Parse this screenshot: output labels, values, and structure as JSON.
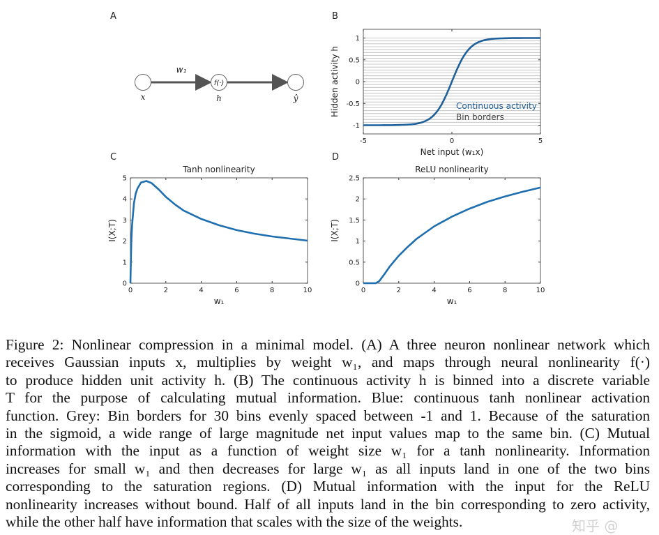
{
  "panels": {
    "a": "A",
    "b": "B",
    "c": "C",
    "d": "D"
  },
  "diagram_a": {
    "weight_label": "w₁",
    "nodes": [
      {
        "label": "x",
        "inner": ""
      },
      {
        "label": "h",
        "inner": "f(·)"
      },
      {
        "label": "ŷ",
        "inner": ""
      }
    ],
    "colors": {
      "arrow": "#555555",
      "node": "#666666"
    }
  },
  "chart_data": [
    {
      "type": "line",
      "panel": "B",
      "title": "",
      "xlabel": "Net input (w₁x)",
      "ylabel": "Hidden activity h",
      "xlim": [
        -5,
        5
      ],
      "ylim": [
        -1.2,
        1.2
      ],
      "xticks": [
        "-5",
        "0",
        "5"
      ],
      "yticks": [
        "-1",
        "-0.5",
        "0",
        "0.5",
        "1"
      ],
      "grid": "horizontal bin borders",
      "bin_borders": {
        "count_bins": 30,
        "from": -1,
        "to": 1,
        "color": "#bbbbbb"
      },
      "legend": {
        "placement": "bottom-right",
        "entries": [
          "Continuous activity",
          "Bin borders"
        ],
        "colors": [
          "#1f5f9a",
          "#444444"
        ]
      },
      "series": [
        {
          "name": "Continuous activity",
          "color": "#1f5f9a",
          "x": [
            -5,
            -4.5,
            -4,
            -3.5,
            -3,
            -2.5,
            -2,
            -1.5,
            -1,
            -0.5,
            0,
            0.5,
            1,
            1.5,
            2,
            2.5,
            3,
            3.5,
            4,
            4.5,
            5
          ],
          "y": [
            -1,
            -1,
            -0.999,
            -0.998,
            -0.995,
            -0.987,
            -0.964,
            -0.905,
            -0.762,
            -0.462,
            0,
            0.462,
            0.762,
            0.905,
            0.964,
            0.987,
            0.995,
            0.998,
            0.999,
            1,
            1
          ]
        }
      ]
    },
    {
      "type": "line",
      "panel": "C",
      "title": "Tanh nonlinearity",
      "xlabel": "w₁",
      "ylabel": "I(X;T)",
      "xlim": [
        0,
        10
      ],
      "ylim": [
        0,
        5
      ],
      "xticks": [
        "0",
        "2",
        "4",
        "6",
        "8",
        "10"
      ],
      "yticks": [
        "0",
        "1",
        "2",
        "3",
        "4",
        "5"
      ],
      "grid": false,
      "series": [
        {
          "color": "#1f6fb0",
          "x": [
            0,
            0.05,
            0.1,
            0.2,
            0.3,
            0.4,
            0.6,
            0.9,
            1.2,
            1.6,
            2,
            2.5,
            3,
            4,
            5,
            6,
            7,
            8,
            9,
            10
          ],
          "y": [
            0,
            2.0,
            2.8,
            3.8,
            4.25,
            4.5,
            4.78,
            4.85,
            4.75,
            4.45,
            4.1,
            3.75,
            3.45,
            3.05,
            2.75,
            2.52,
            2.35,
            2.22,
            2.12,
            2.02
          ]
        }
      ]
    },
    {
      "type": "line",
      "panel": "D",
      "title": "ReLU nonlinearity",
      "xlabel": "w₁",
      "ylabel": "I(X;T)",
      "xlim": [
        0,
        10
      ],
      "ylim": [
        0,
        2.5
      ],
      "xticks": [
        "0",
        "2",
        "4",
        "6",
        "8",
        "10"
      ],
      "yticks": [
        "0",
        "0.5",
        "1",
        "1.5",
        "2",
        "2.5"
      ],
      "grid": false,
      "series": [
        {
          "color": "#1f6fb0",
          "x": [
            0,
            0.7,
            0.9,
            1.2,
            1.5,
            2,
            2.5,
            3,
            4,
            5,
            6,
            7,
            8,
            9,
            10
          ],
          "y": [
            0,
            0,
            0.05,
            0.22,
            0.4,
            0.65,
            0.86,
            1.05,
            1.35,
            1.58,
            1.77,
            1.93,
            2.06,
            2.17,
            2.27
          ]
        }
      ]
    }
  ],
  "caption": {
    "lines": [
      "Figure 2: Nonlinear compression in a minimal model. (A) A three neuron nonlinear network which",
      "receives Gaussian inputs x, multiplies by weight w₁, and maps through neural nonlinearity f(·)",
      "to produce hidden unit activity h. (B) The continuous activity h is binned into a discrete variable",
      "T for the purpose of calculating mutual information. Blue: continuous tanh nonlinear activation",
      "function. Grey: Bin borders for 30 bins evenly spaced between -1 and 1. Because of the saturation",
      "in the sigmoid, a wide range of large magnitude net input values map to the same bin. (C) Mutual",
      "information with the input as a function of weight size w₁ for a tanh nonlinearity. Information",
      "increases for small w₁ and then decreases for large w₁ as all inputs land in one of the two bins",
      "corresponding to the saturation regions. (D) Mutual information with the input for the ReLU",
      "nonlinearity increases without bound. Half of all inputs land in the bin corresponding to zero activity,",
      "while the other half have information that scales with the size of the weights."
    ]
  },
  "watermark": "知乎 @"
}
